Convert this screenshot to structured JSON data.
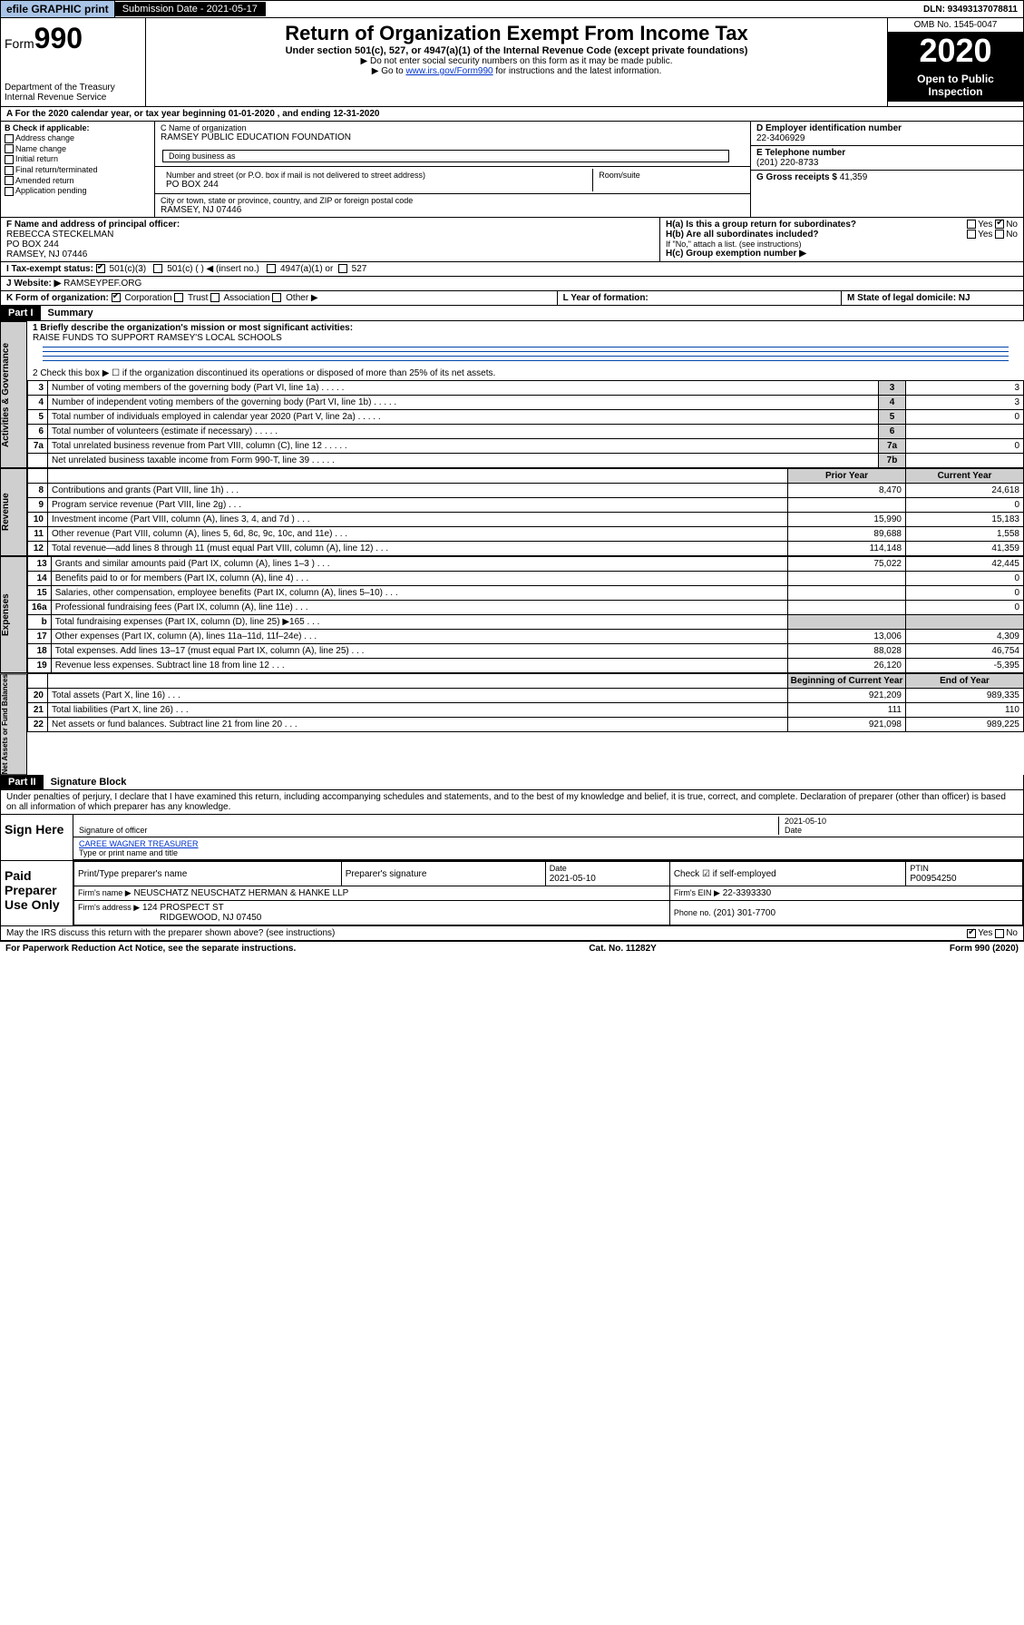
{
  "top": {
    "efile": "efile GRAPHIC print",
    "submission_label": "Submission Date - 2021-05-17",
    "dln": "DLN: 93493137078811"
  },
  "header": {
    "form_prefix": "Form",
    "form_no": "990",
    "title": "Return of Organization Exempt From Income Tax",
    "sub": "Under section 501(c), 527, or 4947(a)(1) of the Internal Revenue Code (except private foundations)",
    "note1": "▶ Do not enter social security numbers on this form as it may be made public.",
    "note2a": "▶ Go to ",
    "note2link": "www.irs.gov/Form990",
    "note2b": " for instructions and the latest information.",
    "dept1": "Department of the Treasury",
    "dept2": "Internal Revenue Service",
    "omb": "OMB No. 1545-0047",
    "year": "2020",
    "open": "Open to Public Inspection"
  },
  "period": "A For the 2020 calendar year, or tax year beginning 01-01-2020    , and ending 12-31-2020",
  "box_b": {
    "title": "B Check if applicable:",
    "items": [
      "Address change",
      "Name change",
      "Initial return",
      "Final return/terminated",
      "Amended return",
      "Application pending"
    ]
  },
  "box_c": {
    "name_label": "C Name of organization",
    "name": "RAMSEY PUBLIC EDUCATION FOUNDATION",
    "dba_label": "Doing business as",
    "dba": "",
    "addr_label": "Number and street (or P.O. box if mail is not delivered to street address)",
    "room_label": "Room/suite",
    "addr": "PO BOX 244",
    "city_label": "City or town, state or province, country, and ZIP or foreign postal code",
    "city": "RAMSEY, NJ  07446"
  },
  "box_d": {
    "label": "D Employer identification number",
    "value": "22-3406929"
  },
  "box_e": {
    "label": "E Telephone number",
    "value": "(201) 220-8733"
  },
  "box_g": {
    "label": "G Gross receipts $",
    "value": "41,359"
  },
  "box_f": {
    "label": "F Name and address of principal officer:",
    "name": "REBECCA STECKELMAN",
    "addr1": "PO BOX 244",
    "addr2": "RAMSEY, NJ  07446"
  },
  "box_h": {
    "a": "H(a)  Is this a group return for subordinates?",
    "b": "H(b)  Are all subordinates included?",
    "note": "If \"No,\" attach a list. (see instructions)",
    "c": "H(c)  Group exemption number ▶"
  },
  "tax_status": {
    "label": "I  Tax-exempt status:",
    "opts": [
      "501(c)(3)",
      "501(c) (  ) ◀ (insert no.)",
      "4947(a)(1) or",
      "527"
    ]
  },
  "website": {
    "label": "J  Website: ▶",
    "value": "RAMSEYPEF.ORG"
  },
  "k": "K Form of organization:",
  "k_opts": [
    "Corporation",
    "Trust",
    "Association",
    "Other ▶"
  ],
  "l": "L Year of formation:",
  "m": "M State of legal domicile: NJ",
  "part1": {
    "id": "Part I",
    "title": "Summary"
  },
  "q1": {
    "label": "1  Briefly describe the organization's mission or most significant activities:",
    "text": "RAISE FUNDS TO SUPPORT RAMSEY'S LOCAL SCHOOLS"
  },
  "q2": "2   Check this box ▶ ☐  if the organization discontinued its operations or disposed of more than 25% of its net assets.",
  "lines_ag": [
    {
      "n": "3",
      "txt": "Number of voting members of the governing body (Part VI, line 1a)",
      "box": "3",
      "v": "3"
    },
    {
      "n": "4",
      "txt": "Number of independent voting members of the governing body (Part VI, line 1b)",
      "box": "4",
      "v": "3"
    },
    {
      "n": "5",
      "txt": "Total number of individuals employed in calendar year 2020 (Part V, line 2a)",
      "box": "5",
      "v": "0"
    },
    {
      "n": "6",
      "txt": "Total number of volunteers (estimate if necessary)",
      "box": "6",
      "v": ""
    },
    {
      "n": "7a",
      "txt": "Total unrelated business revenue from Part VIII, column (C), line 12",
      "box": "7a",
      "v": "0"
    },
    {
      "n": "",
      "txt": "Net unrelated business taxable income from Form 990-T, line 39",
      "box": "7b",
      "v": ""
    }
  ],
  "year_hdr": {
    "p": "Prior Year",
    "c": "Current Year"
  },
  "rev": [
    {
      "n": "8",
      "txt": "Contributions and grants (Part VIII, line 1h)",
      "p": "8,470",
      "c": "24,618"
    },
    {
      "n": "9",
      "txt": "Program service revenue (Part VIII, line 2g)",
      "p": "",
      "c": "0"
    },
    {
      "n": "10",
      "txt": "Investment income (Part VIII, column (A), lines 3, 4, and 7d )",
      "p": "15,990",
      "c": "15,183"
    },
    {
      "n": "11",
      "txt": "Other revenue (Part VIII, column (A), lines 5, 6d, 8c, 9c, 10c, and 11e)",
      "p": "89,688",
      "c": "1,558"
    },
    {
      "n": "12",
      "txt": "Total revenue—add lines 8 through 11 (must equal Part VIII, column (A), line 12)",
      "p": "114,148",
      "c": "41,359"
    }
  ],
  "exp": [
    {
      "n": "13",
      "txt": "Grants and similar amounts paid (Part IX, column (A), lines 1–3 )",
      "p": "75,022",
      "c": "42,445"
    },
    {
      "n": "14",
      "txt": "Benefits paid to or for members (Part IX, column (A), line 4)",
      "p": "",
      "c": "0"
    },
    {
      "n": "15",
      "txt": "Salaries, other compensation, employee benefits (Part IX, column (A), lines 5–10)",
      "p": "",
      "c": "0"
    },
    {
      "n": "16a",
      "txt": "Professional fundraising fees (Part IX, column (A), line 11e)",
      "p": "",
      "c": "0"
    },
    {
      "n": "b",
      "txt": "Total fundraising expenses (Part IX, column (D), line 25) ▶165",
      "p": "—",
      "c": "—"
    },
    {
      "n": "17",
      "txt": "Other expenses (Part IX, column (A), lines 11a–11d, 11f–24e)",
      "p": "13,006",
      "c": "4,309"
    },
    {
      "n": "18",
      "txt": "Total expenses. Add lines 13–17 (must equal Part IX, column (A), line 25)",
      "p": "88,028",
      "c": "46,754"
    },
    {
      "n": "19",
      "txt": "Revenue less expenses. Subtract line 18 from line 12",
      "p": "26,120",
      "c": "-5,395"
    }
  ],
  "net_hdr": {
    "p": "Beginning of Current Year",
    "c": "End of Year"
  },
  "net": [
    {
      "n": "20",
      "txt": "Total assets (Part X, line 16)",
      "p": "921,209",
      "c": "989,335"
    },
    {
      "n": "21",
      "txt": "Total liabilities (Part X, line 26)",
      "p": "111",
      "c": "110"
    },
    {
      "n": "22",
      "txt": "Net assets or fund balances. Subtract line 21 from line 20",
      "p": "921,098",
      "c": "989,225"
    }
  ],
  "part2": {
    "id": "Part II",
    "title": "Signature Block"
  },
  "perjury": "Under penalties of perjury, I declare that I have examined this return, including accompanying schedules and statements, and to the best of my knowledge and belief, it is true, correct, and complete. Declaration of preparer (other than officer) is based on all information of which preparer has any knowledge.",
  "sign": {
    "here": "Sign Here",
    "sig_of_officer": "Signature of officer",
    "date": "2021-05-10",
    "date_lbl": "Date",
    "name": "CAREE WAGNER  TREASURER",
    "type_lbl": "Type or print name and title"
  },
  "paid": {
    "title": "Paid Preparer Use Only",
    "h1": "Print/Type preparer's name",
    "h2": "Preparer's signature",
    "h3": "Date",
    "h3v": "2021-05-10",
    "h4": "Check ☑ if self-employed",
    "h5": "PTIN",
    "h5v": "P00954250",
    "firm_lbl": "Firm's name     ▶",
    "firm": "NEUSCHATZ NEUSCHATZ HERMAN & HANKE LLP",
    "ein_lbl": "Firm's EIN ▶",
    "ein": "22-3393330",
    "addr_lbl": "Firm's address ▶",
    "addr1": "124 PROSPECT ST",
    "addr2": "RIDGEWOOD, NJ  07450",
    "phone_lbl": "Phone no.",
    "phone": "(201) 301-7700"
  },
  "discuss": "May the IRS discuss this return with the preparer shown above? (see instructions)",
  "footer": {
    "l": "For Paperwork Reduction Act Notice, see the separate instructions.",
    "m": "Cat. No. 11282Y",
    "r": "Form 990 (2020)"
  },
  "sidelabels": {
    "ag": "Activities & Governance",
    "rev": "Revenue",
    "exp": "Expenses",
    "net": "Net Assets or Fund Balances"
  },
  "colors": {
    "link": "#0033cc",
    "shade": "#cfcfcf"
  }
}
